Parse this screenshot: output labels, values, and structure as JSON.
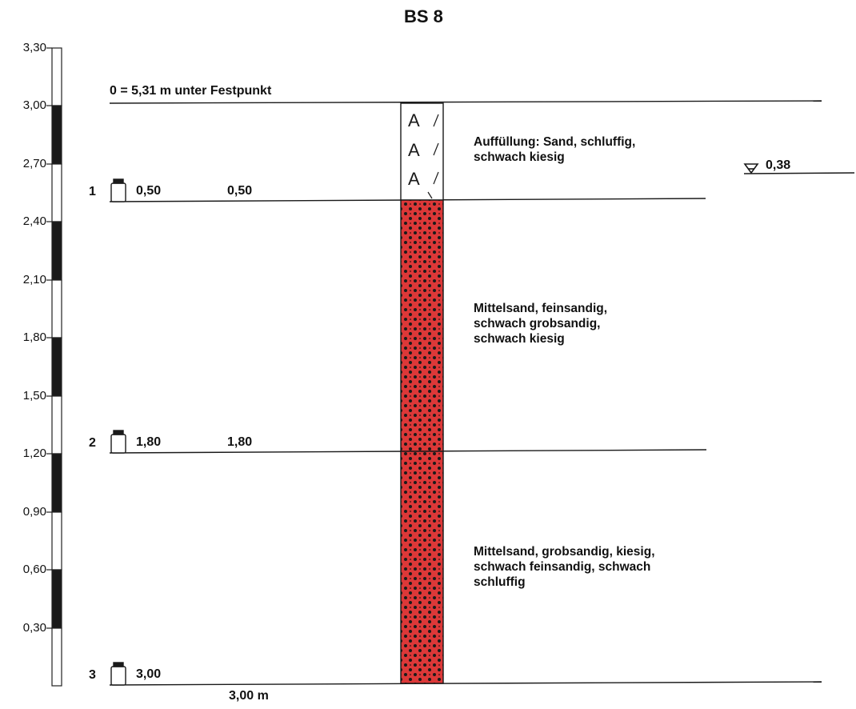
{
  "title": "BS 8",
  "reference": "0 = 5,31 m unter Festpunkt",
  "scale": {
    "labels": [
      "3,30",
      "3,00",
      "2,70",
      "2,40",
      "2,10",
      "1,80",
      "1,50",
      "1,20",
      "0,90",
      "0,60",
      "0,30"
    ],
    "segment_colors": [
      "#ffffff",
      "#1a1a1a",
      "#ffffff",
      "#1a1a1a",
      "#ffffff",
      "#1a1a1a",
      "#ffffff",
      "#1a1a1a",
      "#ffffff",
      "#1a1a1a",
      "#ffffff"
    ]
  },
  "layers": [
    {
      "depth_bottom": "0,50",
      "description": [
        "Auffüllung: Sand, schluffig,",
        "schwach kiesig"
      ],
      "pattern": "fill-A",
      "color": "#ffffff"
    },
    {
      "depth_bottom": "1,80",
      "description": [
        "Mittelsand, feinsandig,",
        "schwach grobsandig,",
        "schwach kiesig"
      ],
      "pattern": "sand-dots",
      "color": "#dc3838"
    },
    {
      "depth_bottom": "3,00",
      "description": [
        "Mittelsand, grobsandig, kiesig,",
        "schwach feinsandig, schwach",
        "schluffig"
      ],
      "pattern": "sand-dots",
      "color": "#dc3838"
    }
  ],
  "samples": [
    {
      "number": "1",
      "depth": "0,50"
    },
    {
      "number": "2",
      "depth": "1,80"
    },
    {
      "number": "3",
      "depth": "3,00"
    }
  ],
  "final_depth": "3,00 m",
  "groundwater": {
    "icon": "water-level-triangle-icon",
    "value": "0,38"
  }
}
